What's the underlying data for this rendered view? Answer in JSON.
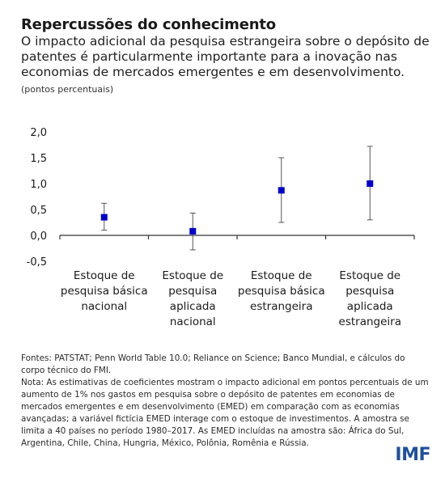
{
  "header": {
    "title": "Repercussões do conhecimento",
    "subtitle": "O impacto adicional da pesquisa estrangeira sobre o depósito de patentes é particularmente importante para a inovação nas economias de mercados emergentes e em desenvolvimento.",
    "unit": "(pontos percentuais)"
  },
  "chart_data": {
    "type": "scatter",
    "title": "",
    "ylabel": "",
    "ylim": [
      -0.5,
      2.0
    ],
    "yticks": [
      -0.5,
      0.0,
      0.5,
      1.0,
      1.5,
      2.0
    ],
    "ytick_labels": [
      "-0,5",
      "0,0",
      "0,5",
      "1,0",
      "1,5",
      "2,0"
    ],
    "categories": [
      [
        "Estoque de",
        "pesquisa básica",
        "nacional"
      ],
      [
        "Estoque de",
        "pesquisa",
        "aplicada",
        "nacional"
      ],
      [
        "Estoque de",
        "pesquisa básica",
        "estrangeira"
      ],
      [
        "Estoque de",
        "pesquisa",
        "aplicada",
        "estrangeira"
      ]
    ],
    "values": [
      0.35,
      0.08,
      0.87,
      1.0
    ],
    "lower": [
      0.1,
      -0.28,
      0.25,
      0.3
    ],
    "upper": [
      0.62,
      0.43,
      1.5,
      1.72
    ],
    "colors": {
      "point": "#0000cc",
      "whisker": "#555555",
      "axis": "#333333"
    },
    "grid": false
  },
  "notes": {
    "sources": "Fontes: PATSTAT; Penn World Table 10.0; Reliance on Science; Banco Mundial, e cálculos do corpo técnico do FMI.",
    "note": "Nota: As estimativas de coeficientes mostram o impacto adicional em pontos percentuais de um aumento de 1% nos gastos em pesquisa sobre o depósito de patentes em economias de mercados emergentes e em desenvolvimento (EMED) em comparação com as economias avançadas; a variável fictícia EMED interage com o estoque de investimentos. A amostra se limita a 40 países no período 1980–2017. As EMED incluídas na amostra são: África do Sul, Argentina, Chile, China, Hungria, México, Polônia, Romênia e Rússia."
  },
  "logo": "IMF"
}
